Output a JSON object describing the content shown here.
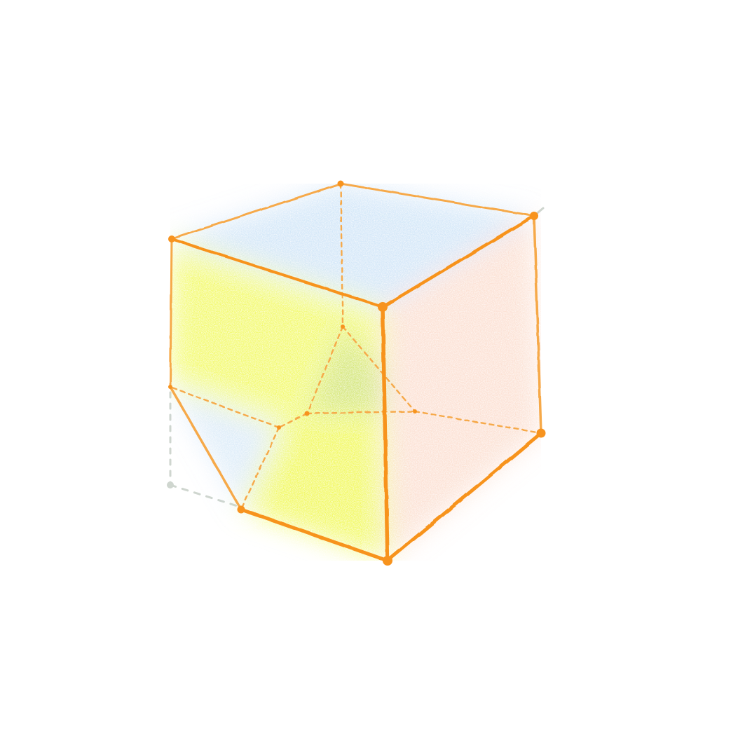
{
  "diagram": {
    "type": "truncated-cube-wireframe",
    "colors": {
      "edge": "#f7931e",
      "edge_light": "#f6a94a",
      "vertex": "#f7931e",
      "axis": "#cfd6cf",
      "tint_yellow": "#e9f500",
      "tint_blue": "#9fc9ef",
      "tint_green": "#8fb89a",
      "tint_peach": "#f7b493"
    }
  }
}
